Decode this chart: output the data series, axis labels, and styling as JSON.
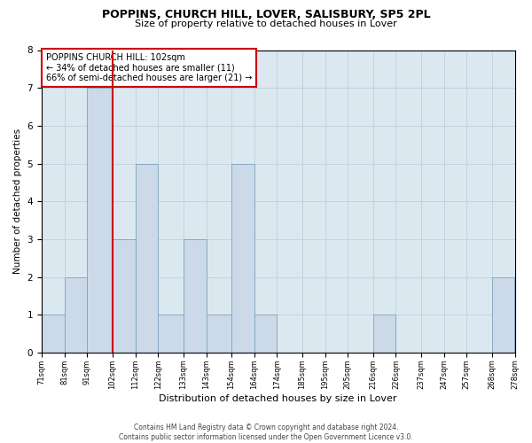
{
  "title1": "POPPINS, CHURCH HILL, LOVER, SALISBURY, SP5 2PL",
  "title2": "Size of property relative to detached houses in Lover",
  "xlabel": "Distribution of detached houses by size in Lover",
  "ylabel": "Number of detached properties",
  "bin_edges": [
    71,
    81,
    91,
    102,
    112,
    122,
    133,
    143,
    154,
    164,
    174,
    185,
    195,
    205,
    216,
    226,
    237,
    247,
    257,
    268,
    278
  ],
  "bar_heights": [
    1,
    2,
    7,
    3,
    5,
    1,
    3,
    1,
    5,
    1,
    0,
    0,
    0,
    0,
    1,
    0,
    0,
    0,
    0,
    2
  ],
  "tick_labels": [
    "71sqm",
    "81sqm",
    "91sqm",
    "102sqm",
    "112sqm",
    "122sqm",
    "133sqm",
    "143sqm",
    "154sqm",
    "164sqm",
    "174sqm",
    "185sqm",
    "195sqm",
    "205sqm",
    "216sqm",
    "226sqm",
    "237sqm",
    "247sqm",
    "257sqm",
    "268sqm",
    "278sqm"
  ],
  "property_size": 102,
  "bar_color": "#ccd9e8",
  "bar_edge_color": "#7ba3c0",
  "red_line_color": "#cc0000",
  "annotation_box_edge": "#cc0000",
  "ylim": [
    0,
    8
  ],
  "yticks": [
    0,
    1,
    2,
    3,
    4,
    5,
    6,
    7,
    8
  ],
  "annotation_title": "POPPINS CHURCH HILL: 102sqm",
  "annotation_line1": "← 34% of detached houses are smaller (11)",
  "annotation_line2": "66% of semi-detached houses are larger (21) →",
  "footer1": "Contains HM Land Registry data © Crown copyright and database right 2024.",
  "footer2": "Contains public sector information licensed under the Open Government Licence v3.0.",
  "bg_color": "#dce8f0"
}
